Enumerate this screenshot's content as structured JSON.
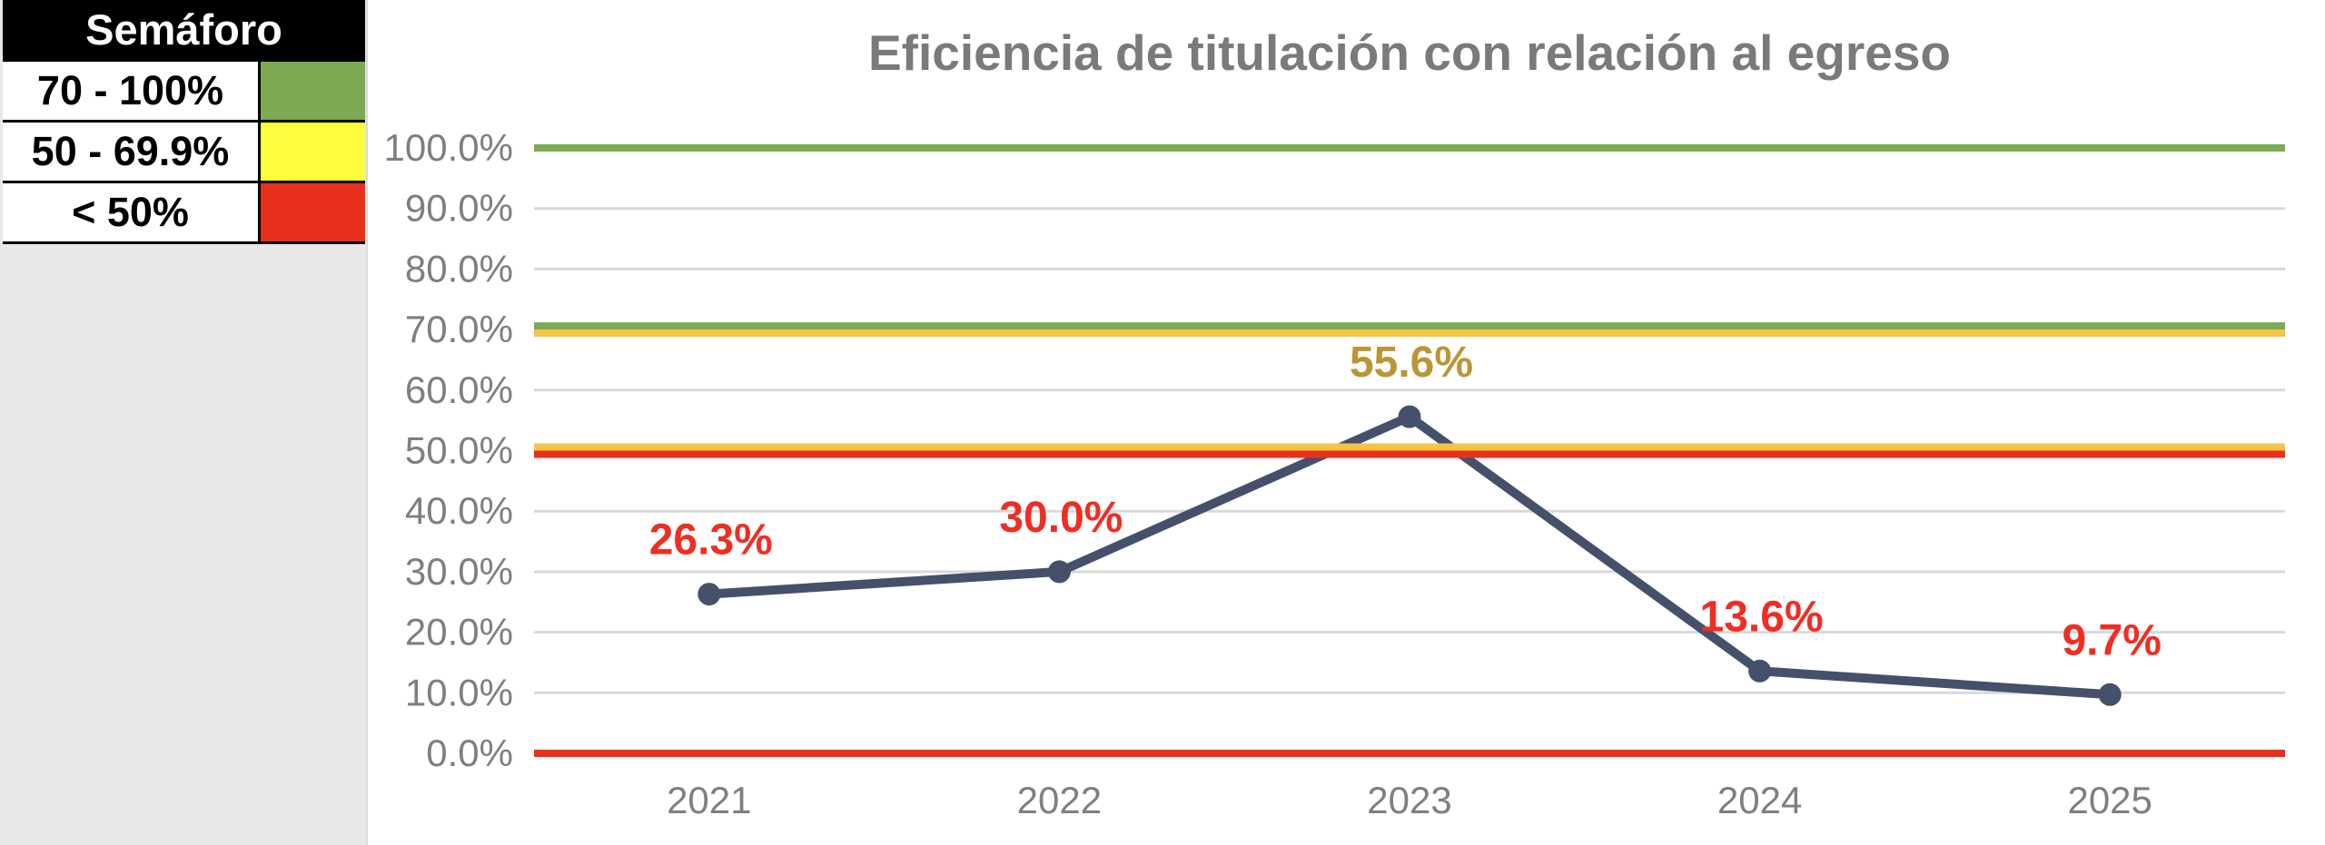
{
  "semaforo": {
    "title": "Semáforo",
    "rows": [
      {
        "label": "70 - 100%",
        "color": "#7CA952"
      },
      {
        "label": "50 - 69.9%",
        "color": "#FDFD3E"
      },
      {
        "label": "< 50%",
        "color": "#E8311C"
      }
    ]
  },
  "chart_data": {
    "type": "line",
    "title": "Eficiencia de titulación con relación al egreso",
    "categories": [
      "2021",
      "2022",
      "2023",
      "2024",
      "2025"
    ],
    "series": [
      {
        "name": "Eficiencia de titulación",
        "values": [
          26.3,
          30.0,
          55.6,
          13.6,
          9.7
        ]
      }
    ],
    "point_labels": [
      "26.3%",
      "30.0%",
      "55.6%",
      "13.6%",
      "9.7%"
    ],
    "point_label_colors": [
      "#F02D23",
      "#F02D23",
      "#BA9636",
      "#F02D23",
      "#F02D23"
    ],
    "y_ticks": [
      "0.0%",
      "10.0%",
      "20.0%",
      "30.0%",
      "40.0%",
      "50.0%",
      "60.0%",
      "70.0%",
      "80.0%",
      "90.0%",
      "100.0%"
    ],
    "ylim": [
      0,
      100
    ],
    "grid": true,
    "legend_position": "none",
    "threshold_lines": [
      {
        "value": 100,
        "colors": [
          "#7CAB54"
        ]
      },
      {
        "value": 70,
        "colors": [
          "#7CAB54",
          "#F6C444"
        ]
      },
      {
        "value": 50,
        "colors": [
          "#F6C444",
          "#E9301D"
        ]
      },
      {
        "value": 0,
        "colors": [
          "#E9301D"
        ]
      }
    ],
    "line_color": "#45506A",
    "axis_text_color": "#7F7F7F",
    "grid_color": "#D9D9D9",
    "title_color": "#7A7A7A"
  }
}
